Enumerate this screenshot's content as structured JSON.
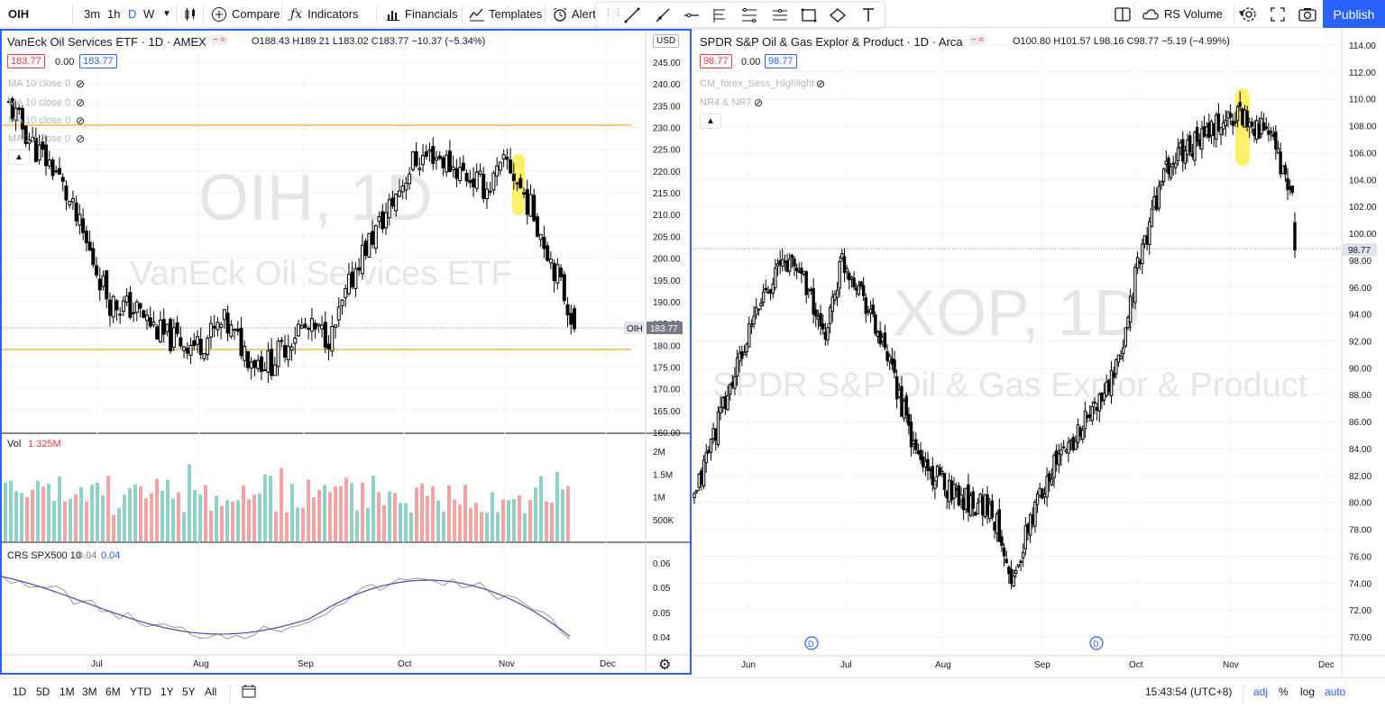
{
  "toolbar": {
    "symbol": "OIH",
    "intervals": [
      "3m",
      "1h",
      "D",
      "W"
    ],
    "compare": "Compare",
    "indicators": "Indicators",
    "financials": "Financials",
    "templates": "Templates",
    "alert": "Alert",
    "rs_volume": "RS Volume",
    "publish": "Publish"
  },
  "left": {
    "title": "VanEck Oil Services ETF · 1D · AMEX",
    "ohlc": "O188.43  H189.21  L183.02  C183.77  −10.37 (−5.34%)",
    "currency": "USD",
    "bid": "183.77",
    "spread": "0.00",
    "ask": "183.77",
    "indicators": [
      "MA 10 close 0",
      "MA 10 close 0",
      "MA 10 close 0",
      "MA 10 close 0"
    ],
    "watermark_big": "OIH, 1D",
    "watermark_small": "VanEck Oil Services ETF",
    "price_label": "OIH",
    "last_price": "183.77",
    "y_ticks": [
      "245.00",
      "240.00",
      "235.00",
      "230.00",
      "225.00",
      "220.00",
      "215.00",
      "210.00",
      "205.00",
      "200.00",
      "195.00",
      "190.00",
      "185.00",
      "180.00",
      "175.00",
      "170.00",
      "165.00",
      "160.00"
    ],
    "vol_label": "Vol",
    "vol_value": "1.325M",
    "vol_ticks": [
      "2M",
      "1.5M",
      "1M",
      "500K"
    ],
    "crs_label": "CRS SPX500 10",
    "crs_v1": "0.04",
    "crs_v2": "0.04",
    "crs_ticks": [
      "0.06",
      "0.05",
      "0.05",
      "0.04"
    ],
    "x_ticks": [
      "Jul",
      "Aug",
      "Sep",
      "Oct",
      "Nov",
      "Dec"
    ]
  },
  "right": {
    "title": "SPDR S&P Oil & Gas Explor & Product · 1D · Arca",
    "ohlc": "O100.80  H101.57  L98.16  C98.77  −5.19 (−4.99%)",
    "bid": "98.77",
    "spread": "0.00",
    "ask": "98.77",
    "indicators": [
      "CM_forex_Sess_Highlight",
      "NR4 & NR7"
    ],
    "watermark_big": "XOP, 1D",
    "watermark_small": "SPDR S&P Oil & Gas Explor & Product",
    "last_price": "98.77",
    "y_ticks": [
      "114.00",
      "112.00",
      "110.00",
      "108.00",
      "106.00",
      "104.00",
      "102.00",
      "100.00",
      "98.00",
      "96.00",
      "94.00",
      "92.00",
      "90.00",
      "88.00",
      "86.00",
      "84.00",
      "82.00",
      "80.00",
      "78.00",
      "76.00",
      "74.00",
      "72.00",
      "70.00"
    ],
    "x_ticks": [
      "Jun",
      "Jul",
      "Aug",
      "Sep",
      "Oct",
      "Nov",
      "Dec"
    ],
    "dividend": "D"
  },
  "bottom": {
    "ranges": [
      "1D",
      "5D",
      "1M",
      "3M",
      "6M",
      "YTD",
      "1Y",
      "5Y",
      "All"
    ],
    "time": "15:43:54 (UTC+8)",
    "adj": "adj",
    "percent": "%",
    "log": "log",
    "auto": "auto"
  },
  "colors": {
    "accent": "#2962ff",
    "up_volume": "#8fd1c7",
    "down_volume": "#f4a3a3",
    "orange_line": "#f5a623",
    "highlight": "#ffeb3b",
    "crs_line": "#5b53a8"
  }
}
